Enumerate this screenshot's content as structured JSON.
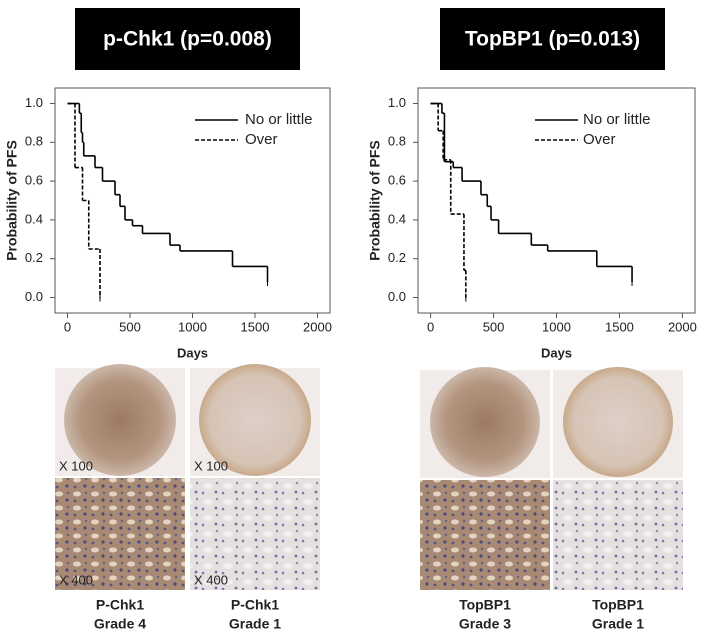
{
  "chart_data": [
    {
      "type": "step-line",
      "title": "p-Chk1 (p=0.008)",
      "x_label": "Days",
      "y_label": "Probability of PFS",
      "xlim": [
        -100,
        2100
      ],
      "xticks": [
        0,
        500,
        1000,
        1500,
        2000
      ],
      "ylim": [
        -0.08,
        1.08
      ],
      "yticks": [
        {
          "value": 0,
          "label": "0.0"
        },
        {
          "value": 0.2,
          "label": "0.2"
        },
        {
          "value": 0.4,
          "label": "0.4"
        },
        {
          "value": 0.6,
          "label": "0.6"
        },
        {
          "value": 0.8,
          "label": "0.8"
        },
        {
          "value": 1,
          "label": "1.0"
        }
      ],
      "legend": "upper right",
      "series": [
        {
          "name": "No or little",
          "color": "#000000",
          "line_style": "solid",
          "x": [
            0,
            95,
            110,
            120,
            130,
            220,
            280,
            380,
            420,
            460,
            520,
            600,
            820,
            900,
            1320,
            1600
          ],
          "values": [
            1.0,
            0.95,
            0.85,
            0.8,
            0.73,
            0.67,
            0.6,
            0.53,
            0.47,
            0.4,
            0.37,
            0.33,
            0.27,
            0.24,
            0.16,
            0.08
          ]
        },
        {
          "name": "Over",
          "color": "#000000",
          "line_style": "dashed",
          "x": [
            0,
            60,
            120,
            170,
            260
          ],
          "values": [
            1.0,
            0.67,
            0.5,
            0.25,
            0.0
          ]
        }
      ]
    },
    {
      "type": "step-line",
      "title": "TopBP1 (p=0.013)",
      "x_label": "Days",
      "y_label": "Probability of PFS",
      "xlim": [
        -100,
        2100
      ],
      "xticks": [
        0,
        500,
        1000,
        1500,
        2000
      ],
      "ylim": [
        -0.08,
        1.08
      ],
      "yticks": [
        {
          "value": 0,
          "label": "0.0"
        },
        {
          "value": 0.2,
          "label": "0.2"
        },
        {
          "value": 0.4,
          "label": "0.4"
        },
        {
          "value": 0.6,
          "label": "0.6"
        },
        {
          "value": 0.8,
          "label": "0.8"
        },
        {
          "value": 1,
          "label": "1.0"
        }
      ],
      "legend": "upper right",
      "series": [
        {
          "name": "No or little",
          "color": "#000000",
          "line_style": "solid",
          "x": [
            0,
            90,
            110,
            180,
            250,
            400,
            450,
            480,
            540,
            800,
            930,
            1320,
            1600
          ],
          "values": [
            1.0,
            0.95,
            0.7,
            0.67,
            0.6,
            0.53,
            0.47,
            0.4,
            0.33,
            0.27,
            0.24,
            0.16,
            0.08
          ]
        },
        {
          "name": "Over",
          "color": "#000000",
          "line_style": "dashed",
          "x": [
            0,
            60,
            100,
            160,
            265,
            280
          ],
          "values": [
            1.0,
            0.86,
            0.71,
            0.43,
            0.14,
            0.0
          ]
        }
      ]
    }
  ],
  "tissue_panels": [
    {
      "columns": [
        {
          "magnifications": [
            "X 100",
            "X 400"
          ],
          "marker": "P-Chk1",
          "grade": "Grade 4"
        },
        {
          "magnifications": [
            "X 100",
            "X 400"
          ],
          "marker": "P-Chk1",
          "grade": "Grade 1"
        }
      ]
    },
    {
      "columns": [
        {
          "marker": "TopBP1",
          "grade": "Grade 3"
        },
        {
          "marker": "TopBP1",
          "grade": "Grade 1"
        }
      ]
    }
  ]
}
